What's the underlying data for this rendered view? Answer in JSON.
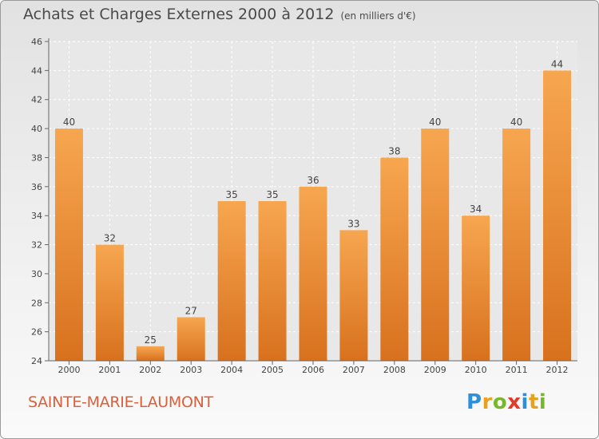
{
  "title": "Achats et Charges Externes 2000 à 2012",
  "unit": "(en milliers d'€)",
  "commune": "SAINTE-MARIE-LAUMONT",
  "logo": {
    "letters": [
      "P",
      "r",
      "o",
      "x",
      "i",
      "t",
      "i"
    ],
    "colors": [
      "#2f8fd8",
      "#e8a020",
      "#77b82a",
      "#e23a2a",
      "#2f8fd8",
      "#e8a020",
      "#77b82a"
    ]
  },
  "colors": {
    "bar": "#f29a3a",
    "bar_dark": "#d9731f",
    "title": "#4a4a4a",
    "commune": "#d9603a"
  },
  "chart_data": {
    "type": "bar",
    "categories": [
      "2000",
      "2001",
      "2002",
      "2003",
      "2004",
      "2005",
      "2006",
      "2007",
      "2008",
      "2009",
      "2010",
      "2011",
      "2012"
    ],
    "values": [
      40,
      32,
      25,
      27,
      35,
      35,
      36,
      33,
      38,
      40,
      34,
      40,
      44
    ],
    "ylim": [
      24,
      46
    ],
    "yticks": [
      24,
      26,
      28,
      30,
      32,
      34,
      36,
      38,
      40,
      42,
      44,
      46
    ],
    "grid": true
  }
}
